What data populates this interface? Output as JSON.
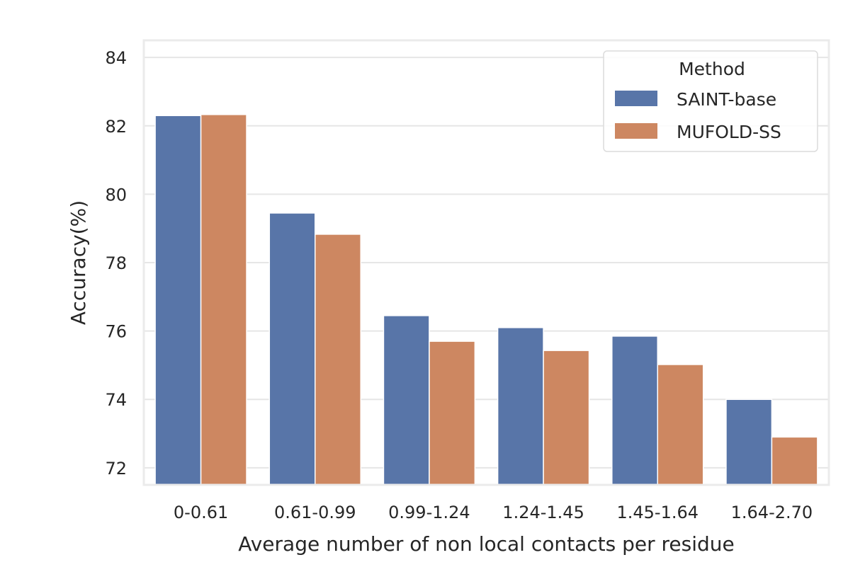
{
  "colors": {
    "plot_background": "#ffffff",
    "frame": "#ebebeb",
    "grid": "#e6e6e6",
    "text": "#262626"
  },
  "chart_data": {
    "type": "bar",
    "xlabel": "Average number of non local contacts per residue",
    "ylabel": "Accuracy(%)",
    "categories": [
      "0-0.61",
      "0.61-0.99",
      "0.99-1.24",
      "1.24-1.45",
      "1.45-1.64",
      "1.64-2.70"
    ],
    "series": [
      {
        "name": "SAINT-base",
        "color": "#5875a8",
        "values": [
          82.3,
          79.45,
          76.45,
          76.1,
          75.85,
          74.0
        ]
      },
      {
        "name": "MUFOLD-SS",
        "color": "#cd8761",
        "values": [
          82.33,
          78.83,
          75.7,
          75.43,
          75.02,
          72.9
        ]
      }
    ],
    "ylim": [
      71.5,
      84.5
    ],
    "yticks": [
      72,
      74,
      76,
      78,
      80,
      82,
      84
    ],
    "grid": true,
    "legend": {
      "title": "Method",
      "position": "top-right"
    }
  }
}
